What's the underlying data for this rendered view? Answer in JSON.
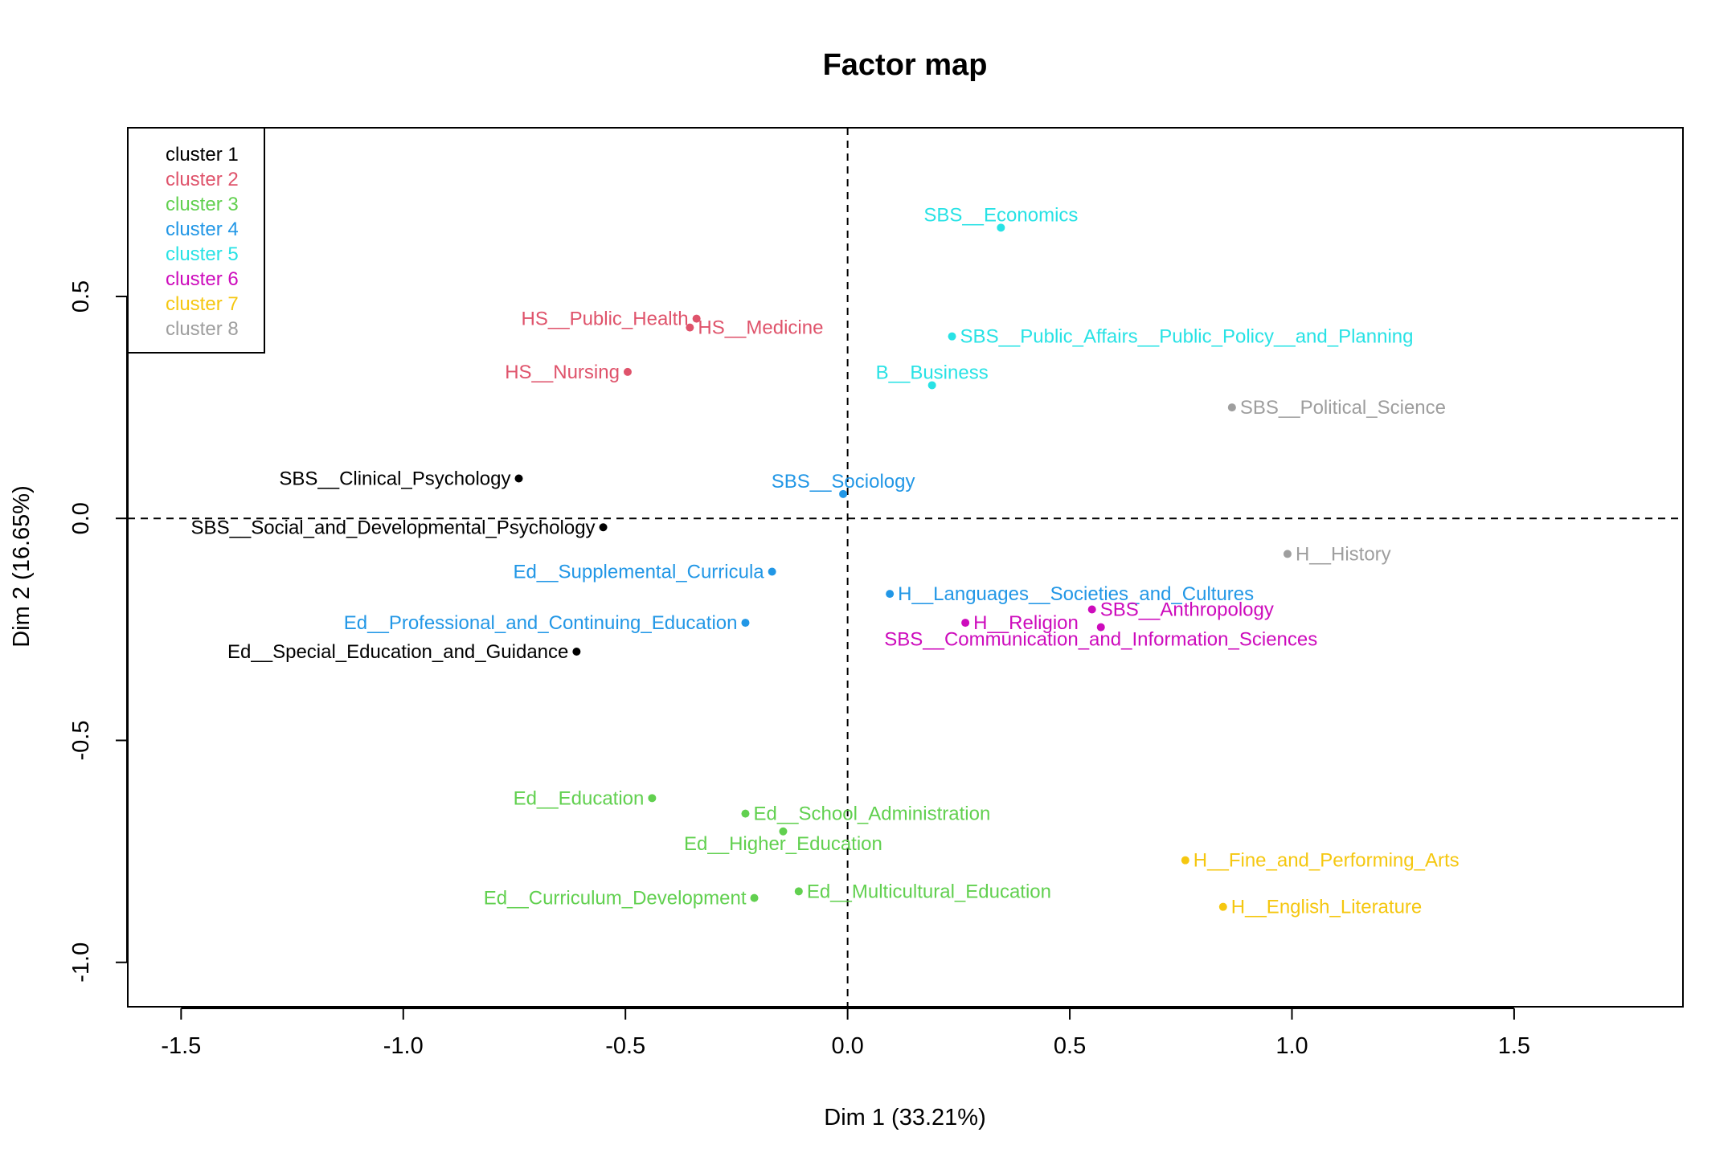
{
  "chart_data": {
    "type": "scatter",
    "title": "Factor map",
    "xlabel": "Dim 1 (33.21%)",
    "ylabel": "Dim 2 (16.65%)",
    "xlim": [
      -1.62,
      1.88
    ],
    "ylim": [
      -1.1,
      0.88
    ],
    "x_ticks": [
      -1.5,
      -1.0,
      -0.5,
      0.0,
      0.5,
      1.0,
      1.5
    ],
    "x_tick_labels": [
      "-1.5",
      "-1.0",
      "-0.5",
      "0.0",
      "0.5",
      "1.0",
      "1.5"
    ],
    "y_ticks": [
      -1.0,
      -0.5,
      0.0,
      0.5
    ],
    "y_tick_labels": [
      "-1.0",
      "-0.5",
      "0.0",
      "0.5"
    ],
    "reference_lines": {
      "x": 0,
      "y": 0,
      "style": "dashed"
    },
    "legend": {
      "position": "top-left",
      "entries": [
        {
          "label": "cluster 1",
          "color": "#000000"
        },
        {
          "label": "cluster 2",
          "color": "#DF536B"
        },
        {
          "label": "cluster 3",
          "color": "#61D04F"
        },
        {
          "label": "cluster 4",
          "color": "#2297E6"
        },
        {
          "label": "cluster 5",
          "color": "#28E2E5"
        },
        {
          "label": "cluster 6",
          "color": "#CD0BBC"
        },
        {
          "label": "cluster 7",
          "color": "#F5C710"
        },
        {
          "label": "cluster 8",
          "color": "#9E9E9E"
        }
      ]
    },
    "points": [
      {
        "label": "SBS__Clinical_Psychology",
        "x": -0.74,
        "y": 0.09,
        "cluster": 1,
        "label_side": "left"
      },
      {
        "label": "SBS__Social_and_Developmental_Psychology",
        "x": -0.55,
        "y": -0.02,
        "cluster": 1,
        "label_side": "left"
      },
      {
        "label": "Ed__Special_Education_and_Guidance",
        "x": -0.61,
        "y": -0.3,
        "cluster": 1,
        "label_side": "left"
      },
      {
        "label": "HS__Public_Health",
        "x": -0.34,
        "y": 0.45,
        "cluster": 2,
        "label_side": "left"
      },
      {
        "label": "HS__Medicine",
        "x": -0.355,
        "y": 0.43,
        "cluster": 2,
        "label_side": "right"
      },
      {
        "label": "HS__Nursing",
        "x": -0.495,
        "y": 0.33,
        "cluster": 2,
        "label_side": "left"
      },
      {
        "label": "Ed__Education",
        "x": -0.44,
        "y": -0.63,
        "cluster": 3,
        "label_side": "left"
      },
      {
        "label": "Ed__School_Administration",
        "x": -0.23,
        "y": -0.665,
        "cluster": 3,
        "label_side": "right"
      },
      {
        "label": "Ed__Higher_Education",
        "x": -0.145,
        "y": -0.705,
        "cluster": 3,
        "label_side": "below"
      },
      {
        "label": "Ed__Multicultural_Education",
        "x": -0.11,
        "y": -0.84,
        "cluster": 3,
        "label_side": "right"
      },
      {
        "label": "Ed__Curriculum_Development",
        "x": -0.21,
        "y": -0.855,
        "cluster": 3,
        "label_side": "left"
      },
      {
        "label": "SBS__Sociology",
        "x": -0.01,
        "y": 0.055,
        "cluster": 4,
        "label_side": "above"
      },
      {
        "label": "Ed__Supplemental_Curricula",
        "x": -0.17,
        "y": -0.12,
        "cluster": 4,
        "label_side": "left"
      },
      {
        "label": "Ed__Professional_and_Continuing_Education",
        "x": -0.23,
        "y": -0.235,
        "cluster": 4,
        "label_side": "left"
      },
      {
        "label": "H__Languages__Societies_and_Cultures",
        "x": 0.095,
        "y": -0.17,
        "cluster": 4,
        "label_side": "right"
      },
      {
        "label": "SBS__Economics",
        "x": 0.345,
        "y": 0.655,
        "cluster": 5,
        "label_side": "above"
      },
      {
        "label": "SBS__Public_Affairs__Public_Policy__and_Planning",
        "x": 0.235,
        "y": 0.41,
        "cluster": 5,
        "label_side": "right"
      },
      {
        "label": "B__Business",
        "x": 0.19,
        "y": 0.3,
        "cluster": 5,
        "label_side": "above"
      },
      {
        "label": "H__Religion",
        "x": 0.265,
        "y": -0.235,
        "cluster": 6,
        "label_side": "right"
      },
      {
        "label": "SBS__Anthropology",
        "x": 0.55,
        "y": -0.205,
        "cluster": 6,
        "label_side": "right"
      },
      {
        "label": "SBS__Communication_and_Information_Sciences",
        "x": 0.57,
        "y": -0.245,
        "cluster": 6,
        "label_side": "below"
      },
      {
        "label": "H__Fine_and_Performing_Arts",
        "x": 0.76,
        "y": -0.77,
        "cluster": 7,
        "label_side": "right"
      },
      {
        "label": "H__English_Literature",
        "x": 0.845,
        "y": -0.875,
        "cluster": 7,
        "label_side": "right"
      },
      {
        "label": "SBS__Political_Science",
        "x": 0.865,
        "y": 0.25,
        "cluster": 8,
        "label_side": "right"
      },
      {
        "label": "H__History",
        "x": 0.99,
        "y": -0.08,
        "cluster": 8,
        "label_side": "right"
      }
    ]
  }
}
